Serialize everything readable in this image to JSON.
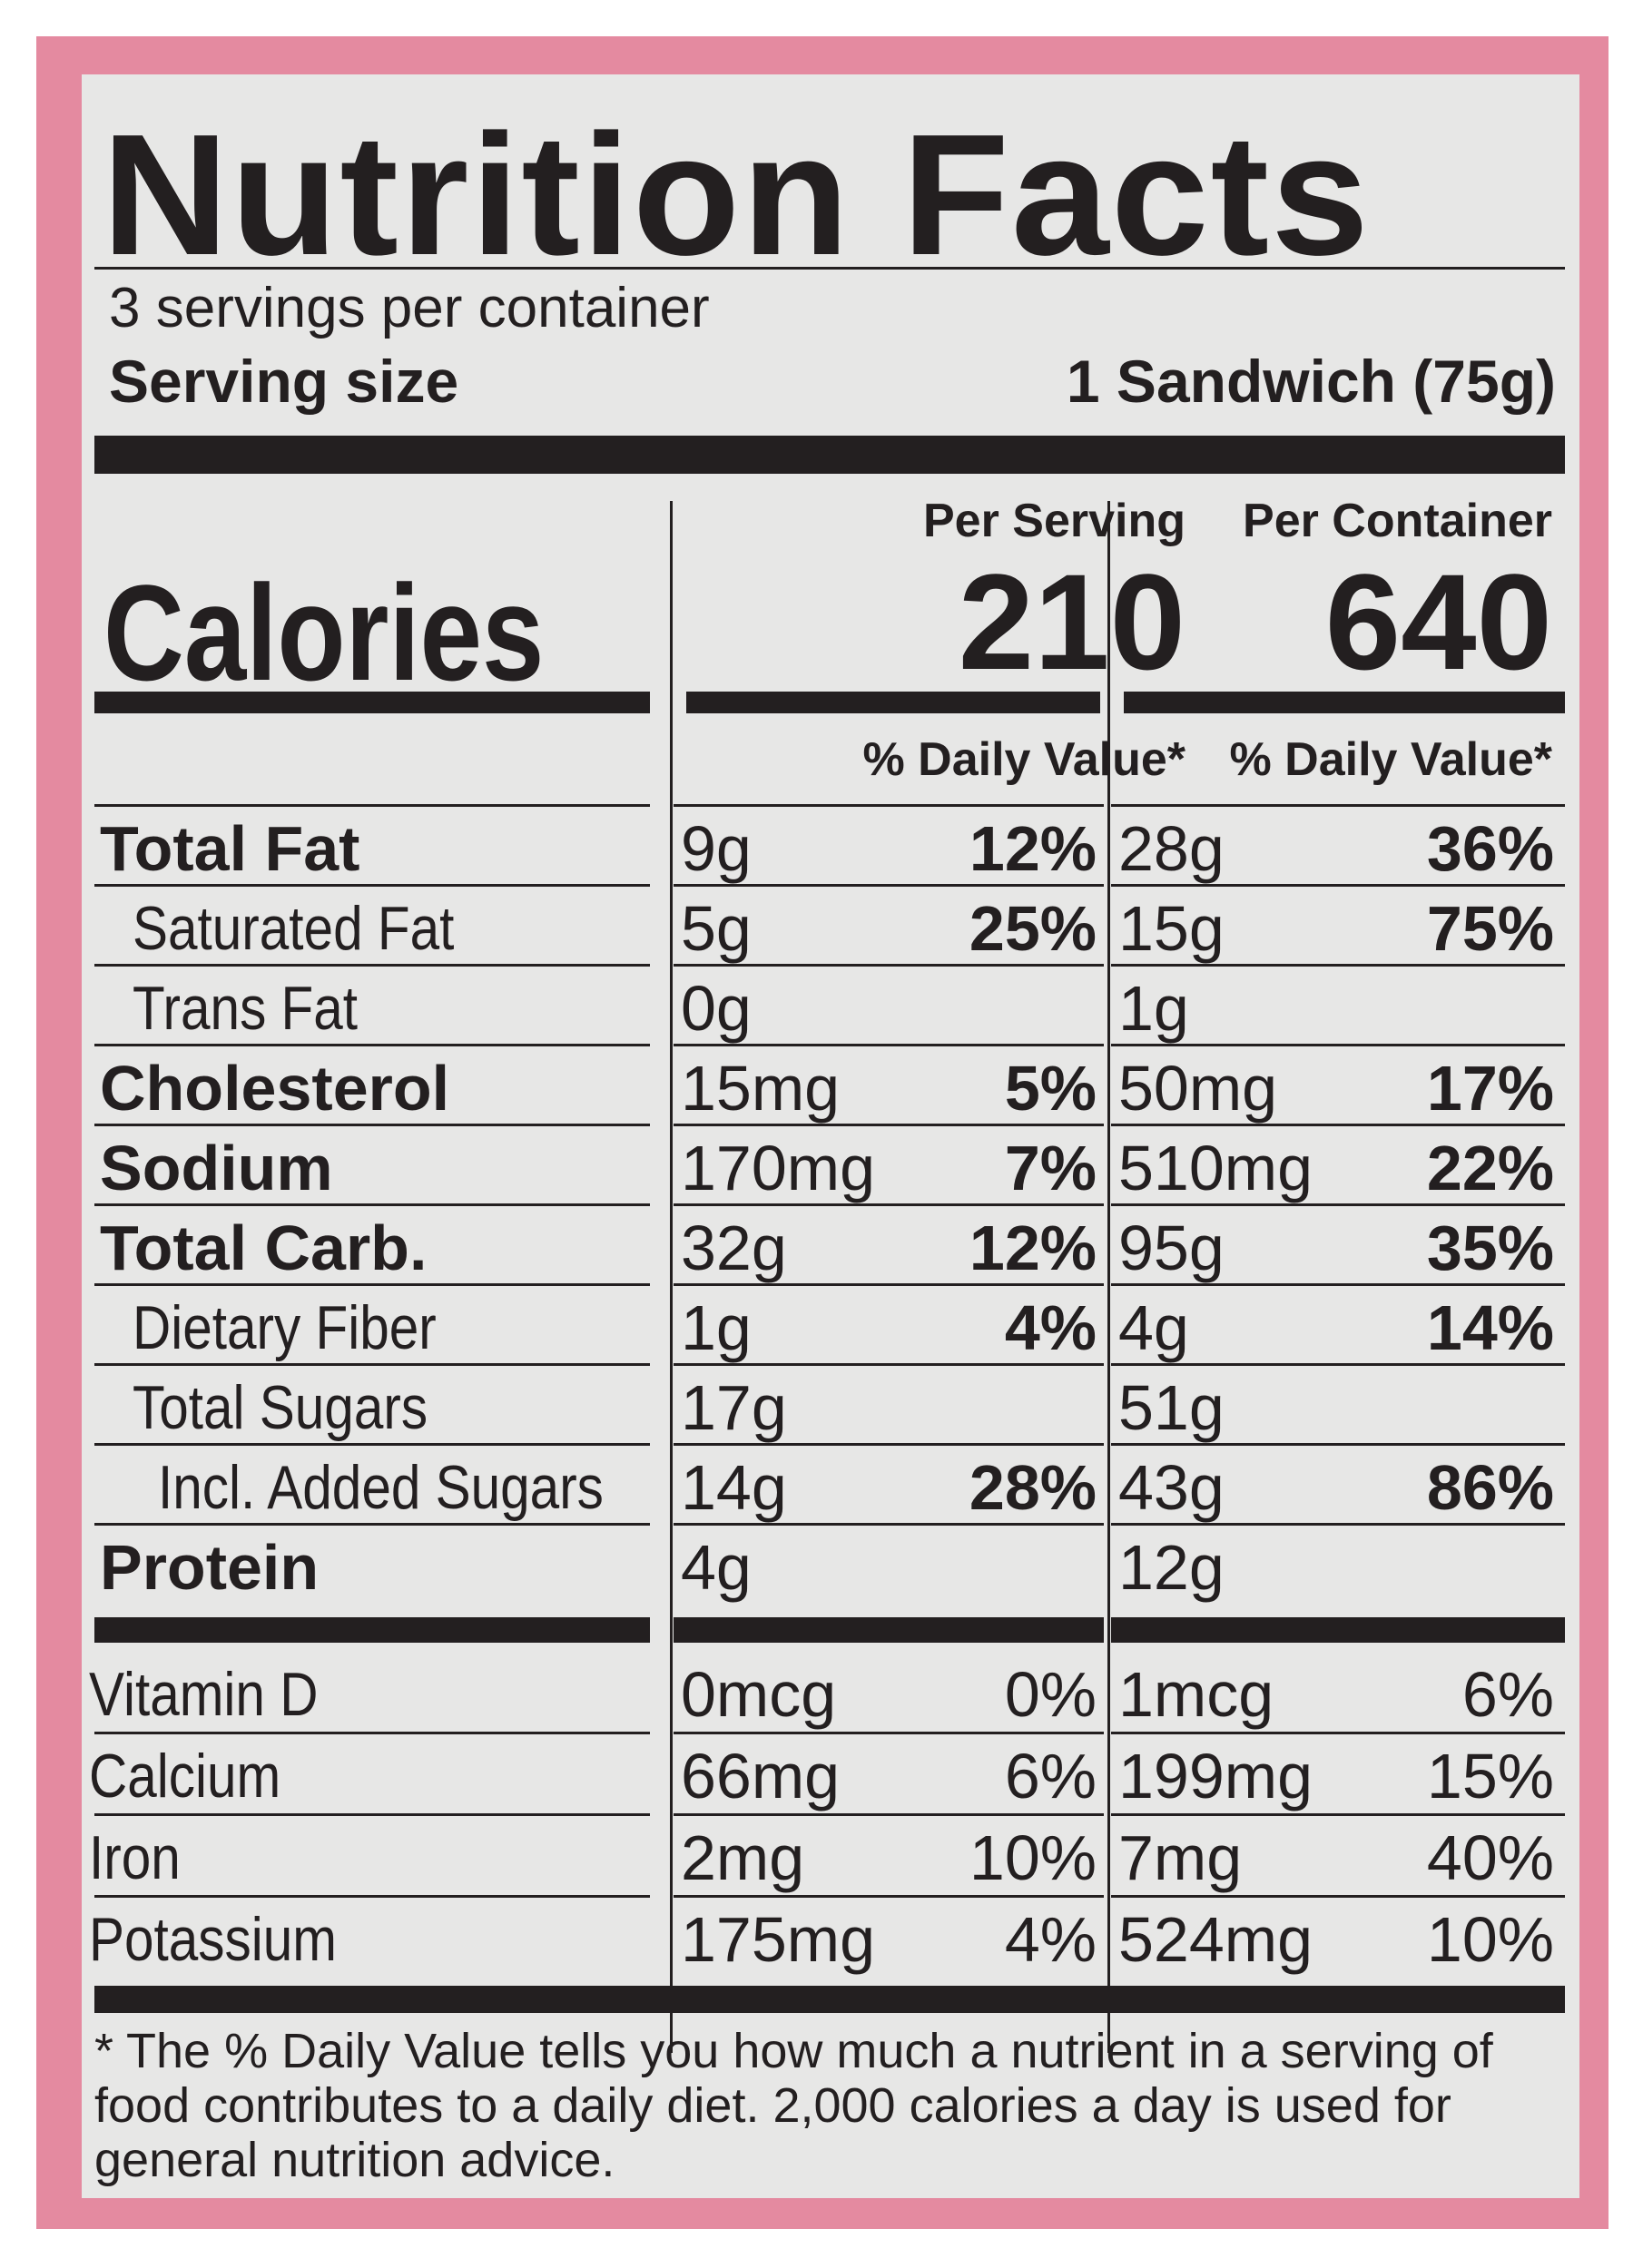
{
  "panel": {
    "title": "Nutrition Facts",
    "servings_per_container": "3 servings per container",
    "serving_size_label": "Serving size",
    "serving_size_value": "1 Sandwich (75g)"
  },
  "columns": {
    "per_serving": "Per Serving",
    "per_container": "Per Container",
    "calories_label": "Calories",
    "calories_serving": "210",
    "calories_container": "640",
    "dv_header": "% Daily Value*"
  },
  "nutrients": [
    {
      "label": "Total Fat",
      "bold": true,
      "indent": 0,
      "s_amt": "9g",
      "s_pct": "12%",
      "c_amt": "28g",
      "c_pct": "36%"
    },
    {
      "label": "Saturated Fat",
      "bold": false,
      "indent": 1,
      "s_amt": "5g",
      "s_pct": "25%",
      "c_amt": "15g",
      "c_pct": "75%"
    },
    {
      "label": "Trans Fat",
      "bold": false,
      "indent": 1,
      "s_amt": "0g",
      "s_pct": "",
      "c_amt": "1g",
      "c_pct": ""
    },
    {
      "label": "Cholesterol",
      "bold": true,
      "indent": 0,
      "s_amt": "15mg",
      "s_pct": "5%",
      "c_amt": "50mg",
      "c_pct": "17%"
    },
    {
      "label": "Sodium",
      "bold": true,
      "indent": 0,
      "s_amt": "170mg",
      "s_pct": "7%",
      "c_amt": "510mg",
      "c_pct": "22%"
    },
    {
      "label": "Total Carb.",
      "bold": true,
      "indent": 0,
      "s_amt": "32g",
      "s_pct": "12%",
      "c_amt": "95g",
      "c_pct": "35%"
    },
    {
      "label": "Dietary Fiber",
      "bold": false,
      "indent": 1,
      "s_amt": "1g",
      "s_pct": "4%",
      "c_amt": "4g",
      "c_pct": "14%"
    },
    {
      "label": "Total Sugars",
      "bold": false,
      "indent": 1,
      "s_amt": "17g",
      "s_pct": "",
      "c_amt": "51g",
      "c_pct": ""
    },
    {
      "label": "Incl. Added Sugars",
      "bold": false,
      "indent": 2,
      "s_amt": "14g",
      "s_pct": "28%",
      "c_amt": "43g",
      "c_pct": "86%"
    },
    {
      "label": "Protein",
      "bold": true,
      "indent": 0,
      "s_amt": "4g",
      "s_pct": "",
      "c_amt": "12g",
      "c_pct": ""
    }
  ],
  "vitamins": [
    {
      "label": "Vitamin D",
      "s_amt": "0mcg",
      "s_pct": "0%",
      "c_amt": "1mcg",
      "c_pct": "6%"
    },
    {
      "label": "Calcium",
      "s_amt": "66mg",
      "s_pct": "6%",
      "c_amt": "199mg",
      "c_pct": "15%"
    },
    {
      "label": "Iron",
      "s_amt": "2mg",
      "s_pct": "10%",
      "c_amt": "7mg",
      "c_pct": "40%"
    },
    {
      "label": "Potassium",
      "s_amt": "175mg",
      "s_pct": "4%",
      "c_amt": "524mg",
      "c_pct": "10%"
    }
  ],
  "footnote": "* The % Daily Value tells you how much a nutrient in a serving of food contributes to a daily diet. 2,000 calories a day is used for general nutrition advice.",
  "colors": {
    "border": "#e48aa0",
    "panel": "#e7e7e6",
    "ink": "#231f20"
  }
}
